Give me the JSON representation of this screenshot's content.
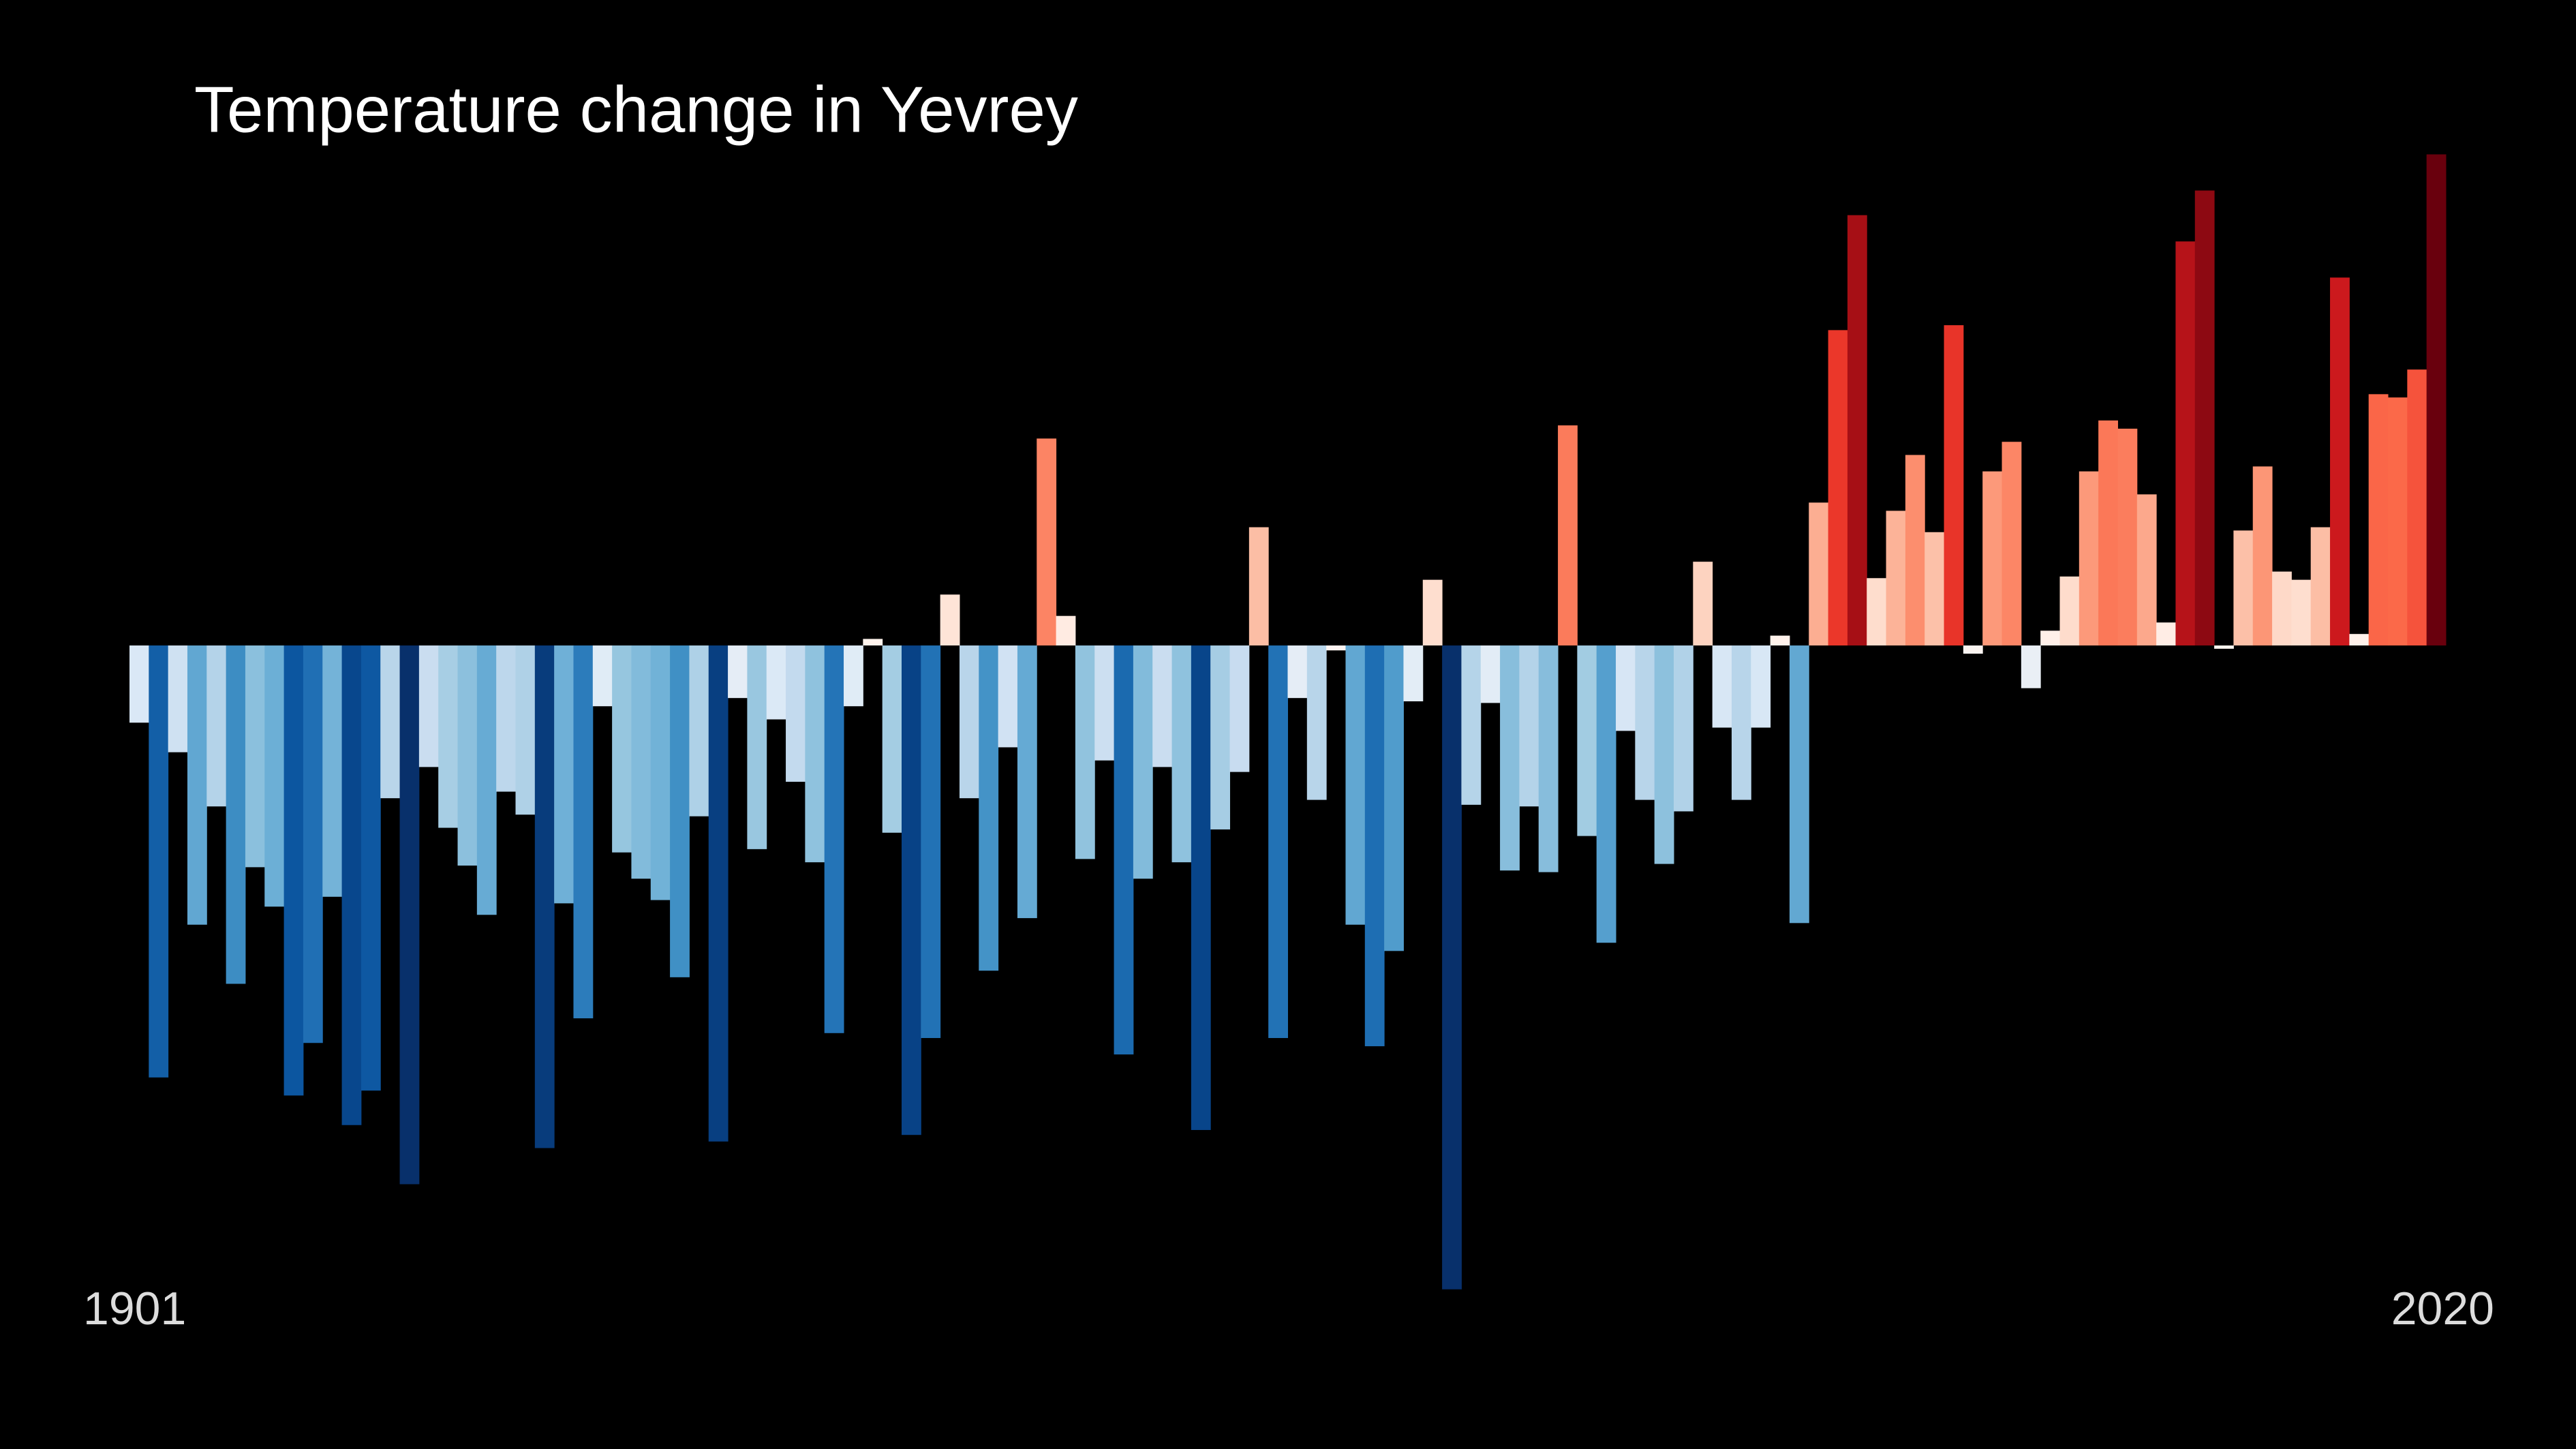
{
  "chart_data": {
    "type": "bar",
    "title": "Temperature change in Yevrey",
    "categories": [
      "1901",
      null,
      null,
      null,
      null,
      null,
      null,
      null,
      null,
      null,
      null,
      null,
      null,
      null,
      null,
      null,
      null,
      null,
      null,
      null,
      null,
      null,
      null,
      null,
      null,
      null,
      null,
      null,
      null,
      null,
      null,
      null,
      null,
      null,
      null,
      null,
      null,
      null,
      null,
      null,
      null,
      null,
      null,
      null,
      null,
      null,
      null,
      null,
      null,
      null,
      null,
      null,
      null,
      null,
      null,
      null,
      null,
      null,
      null,
      null,
      null,
      null,
      null,
      null,
      null,
      null,
      null,
      null,
      null,
      null,
      null,
      null,
      null,
      null,
      null,
      null,
      null,
      null,
      null,
      null,
      null,
      null,
      null,
      null,
      null,
      null,
      null,
      null,
      null,
      null,
      null,
      null,
      null,
      null,
      null,
      null,
      null,
      null,
      null,
      null,
      null,
      null,
      null,
      null,
      null,
      null,
      null,
      null,
      null,
      null,
      null,
      null,
      null,
      null,
      null,
      null,
      null,
      null,
      null,
      "2020"
    ],
    "values": [
      -0.47,
      -2.63,
      -0.65,
      -1.7,
      -0.98,
      -2.06,
      -1.35,
      -1.59,
      -2.74,
      -2.42,
      -1.53,
      -2.92,
      -2.71,
      -0.93,
      -3.28,
      -0.74,
      -1.11,
      -1.34,
      -1.64,
      -0.89,
      -1.03,
      -3.06,
      -1.57,
      -2.27,
      -0.37,
      -1.26,
      -1.42,
      -1.55,
      -2.02,
      -1.04,
      -3.02,
      -0.32,
      -1.24,
      -0.45,
      -0.83,
      -1.32,
      -2.36,
      -0.37,
      0.04,
      -1.14,
      -2.98,
      -2.39,
      0.31,
      -0.93,
      -1.98,
      -0.62,
      -1.66,
      1.26,
      0.18,
      -1.3,
      -0.7,
      -2.49,
      -1.42,
      -0.74,
      -1.32,
      -2.95,
      -1.12,
      -0.77,
      0.72,
      -2.39,
      -0.32,
      -0.94,
      -0.03,
      -1.7,
      -2.44,
      -1.86,
      -0.34,
      0.4,
      -3.92,
      -0.97,
      -0.35,
      -1.37,
      -0.98,
      -1.38,
      1.34,
      -1.16,
      -1.81,
      -0.52,
      -0.94,
      -1.33,
      -1.01,
      0.51,
      -0.5,
      -0.94,
      -0.5,
      0.06,
      -1.69,
      0.87,
      1.92,
      2.62,
      0.41,
      0.82,
      1.16,
      0.69,
      1.95,
      -0.05,
      1.06,
      1.24,
      -0.26,
      0.09,
      0.42,
      1.06,
      1.37,
      1.32,
      0.92,
      0.14,
      2.46,
      2.77,
      -0.02,
      0.7,
      1.09,
      0.45,
      0.4,
      0.72,
      2.24,
      0.07,
      1.53,
      1.51,
      1.68,
      2.99
    ],
    "ylim": [
      -4,
      3.1
    ],
    "grid": false,
    "colormap": [
      {
        "value": -3.2,
        "color": "#08306b"
      },
      {
        "value": -2.8,
        "color": "#08519c"
      },
      {
        "value": -2.4,
        "color": "#2171b5"
      },
      {
        "value": -2.0,
        "color": "#4292c6"
      },
      {
        "value": -1.6,
        "color": "#6baed6"
      },
      {
        "value": -1.2,
        "color": "#9ecae1"
      },
      {
        "value": -0.8,
        "color": "#c6dbef"
      },
      {
        "value": -0.4,
        "color": "#deebf7"
      },
      {
        "value": 0,
        "color": "#fff5f0"
      },
      {
        "value": 0.375,
        "color": "#fee0d2"
      },
      {
        "value": 0.75,
        "color": "#fcbba1"
      },
      {
        "value": 1.125,
        "color": "#fc9272"
      },
      {
        "value": 1.5,
        "color": "#fb6a4a"
      },
      {
        "value": 1.875,
        "color": "#ef3b2c"
      },
      {
        "value": 2.25,
        "color": "#cb181d"
      },
      {
        "value": 2.625,
        "color": "#a50f15"
      },
      {
        "value": 3.0,
        "color": "#67000d"
      }
    ]
  }
}
